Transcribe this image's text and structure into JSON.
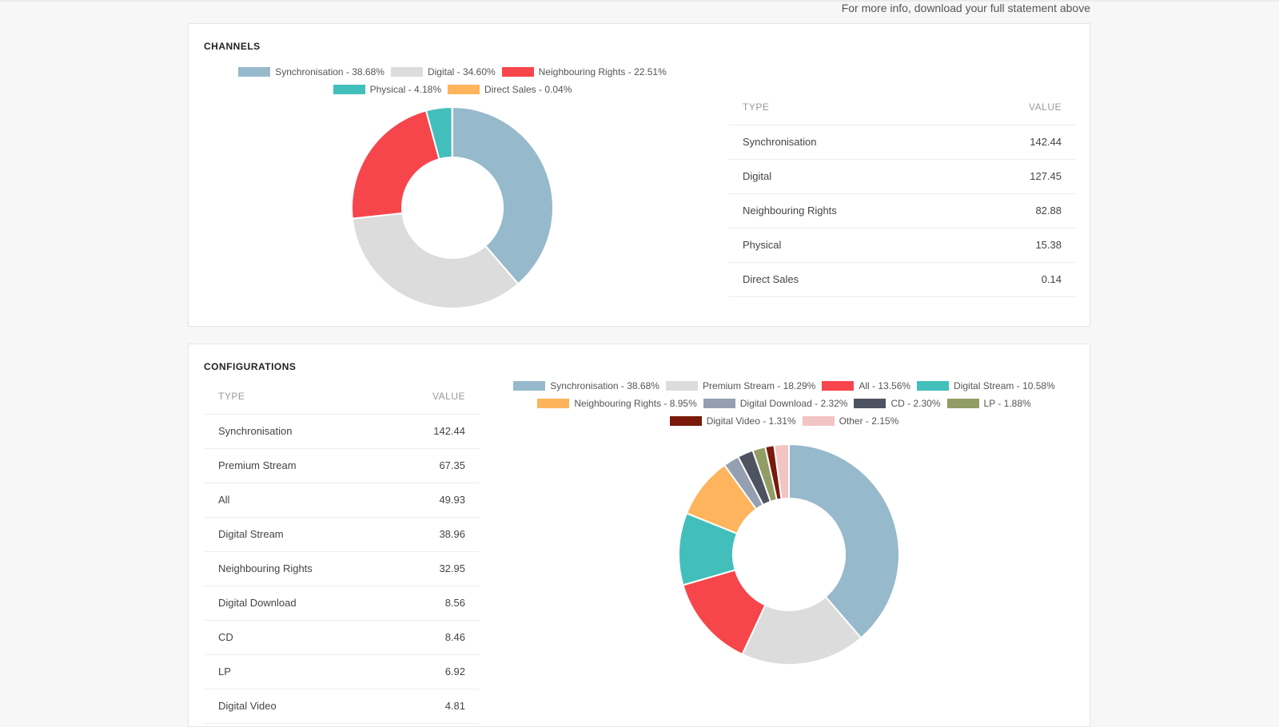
{
  "info_text": "For more info, download your full statement above",
  "channels": {
    "title": "CHANNELS",
    "table_headers": {
      "type": "TYPE",
      "value": "VALUE"
    },
    "rows": [
      {
        "type": "Synchronisation",
        "value": "142.44"
      },
      {
        "type": "Digital",
        "value": "127.45"
      },
      {
        "type": "Neighbouring Rights",
        "value": "82.88"
      },
      {
        "type": "Physical",
        "value": "15.38"
      },
      {
        "type": "Direct Sales",
        "value": "0.14"
      }
    ]
  },
  "configurations": {
    "title": "CONFIGURATIONS",
    "table_headers": {
      "type": "TYPE",
      "value": "VALUE"
    },
    "rows": [
      {
        "type": "Synchronisation",
        "value": "142.44"
      },
      {
        "type": "Premium Stream",
        "value": "67.35"
      },
      {
        "type": "All",
        "value": "49.93"
      },
      {
        "type": "Digital Stream",
        "value": "38.96"
      },
      {
        "type": "Neighbouring Rights",
        "value": "32.95"
      },
      {
        "type": "Digital Download",
        "value": "8.56"
      },
      {
        "type": "CD",
        "value": "8.46"
      },
      {
        "type": "LP",
        "value": "6.92"
      },
      {
        "type": "Digital Video",
        "value": "4.81"
      }
    ]
  },
  "chart_data": [
    {
      "type": "pie",
      "donut": true,
      "legend_position": "top",
      "slices": [
        {
          "label": "Synchronisation - 38.68%",
          "value": 38.68,
          "color": "#97b9cc"
        },
        {
          "label": "Digital - 34.60%",
          "value": 34.6,
          "color": "#dcdcdc"
        },
        {
          "label": "Neighbouring Rights - 22.51%",
          "value": 22.51,
          "color": "#f6464c"
        },
        {
          "label": "Physical - 4.18%",
          "value": 4.18,
          "color": "#43bfbb"
        },
        {
          "label": "Direct Sales - 0.04%",
          "value": 0.04,
          "color": "#fdb45c"
        }
      ]
    },
    {
      "type": "pie",
      "donut": true,
      "legend_position": "top",
      "slices": [
        {
          "label": "Synchronisation - 38.68%",
          "value": 38.68,
          "color": "#97b9cc"
        },
        {
          "label": "Premium Stream - 18.29%",
          "value": 18.29,
          "color": "#dcdcdc"
        },
        {
          "label": "All - 13.56%",
          "value": 13.56,
          "color": "#f6464c"
        },
        {
          "label": "Digital Stream - 10.58%",
          "value": 10.58,
          "color": "#43bfbb"
        },
        {
          "label": "Neighbouring Rights - 8.95%",
          "value": 8.95,
          "color": "#fdb45c"
        },
        {
          "label": "Digital Download - 2.32%",
          "value": 2.32,
          "color": "#949fb1"
        },
        {
          "label": "CD - 2.30%",
          "value": 2.3,
          "color": "#4d5360"
        },
        {
          "label": "LP - 1.88%",
          "value": 1.88,
          "color": "#929c65"
        },
        {
          "label": "Digital Video - 1.31%",
          "value": 1.31,
          "color": "#7a1a0a"
        },
        {
          "label": "Other - 2.15%",
          "value": 2.15,
          "color": "#f2c4c4"
        }
      ]
    }
  ]
}
